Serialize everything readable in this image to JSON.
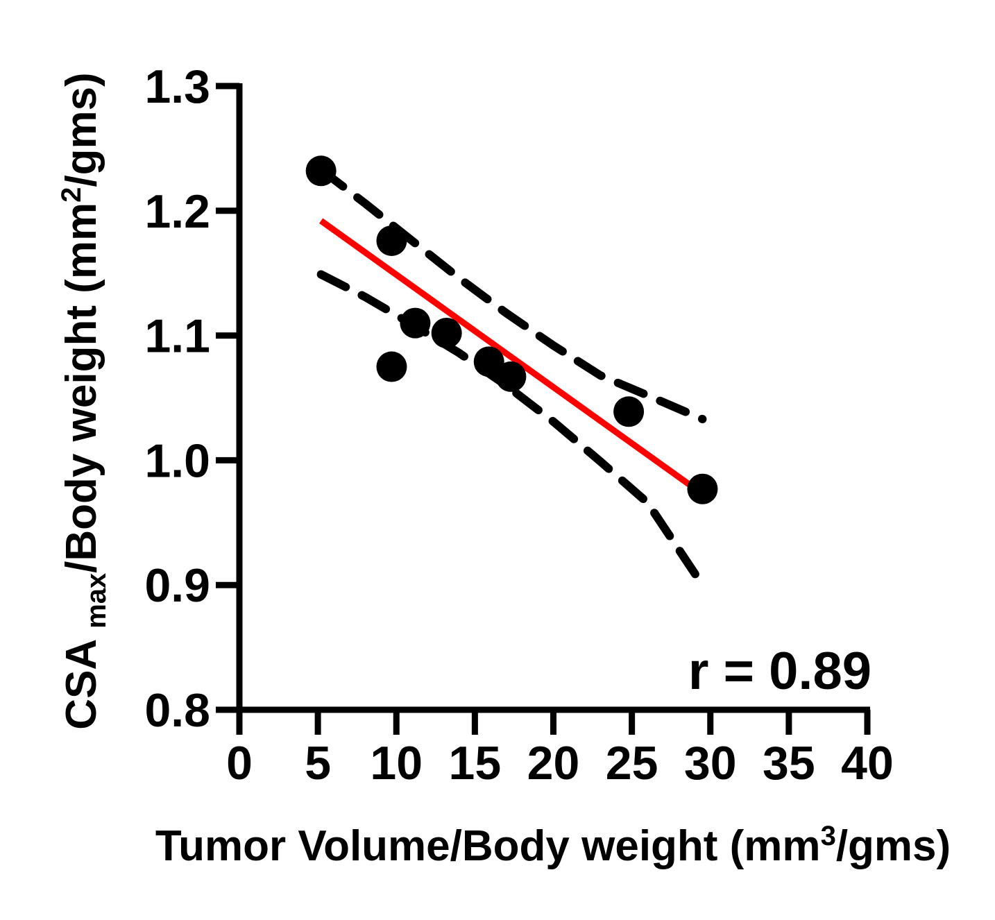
{
  "chart_data": {
    "type": "scatter",
    "title": "",
    "xlabel": {
      "main": "Tumor Volume/Body weight (mm",
      "sup": "3",
      "tail": "/gms)"
    },
    "ylabel": {
      "main": "CSA",
      "sub": "max",
      "mid": "/Body weight (mm",
      "sup": "2",
      "tail": "/gms)"
    },
    "xlim": [
      0,
      40
    ],
    "ylim": [
      0.8,
      1.3
    ],
    "x_ticks": [
      0,
      5,
      10,
      15,
      20,
      25,
      30,
      35,
      40
    ],
    "x_tick_labels": [
      "0",
      "5",
      "10",
      "15",
      "20",
      "25",
      "30",
      "35",
      "40"
    ],
    "y_ticks": [
      0.8,
      0.9,
      1.0,
      1.1,
      1.2,
      1.3
    ],
    "y_tick_labels": [
      "0.8",
      "0.9",
      "1.0",
      "1.1",
      "1.2",
      "1.3"
    ],
    "grid": false,
    "points": [
      {
        "x": 5.2,
        "y": 1.232
      },
      {
        "x": 9.7,
        "y": 1.176
      },
      {
        "x": 9.7,
        "y": 1.075
      },
      {
        "x": 11.2,
        "y": 1.11
      },
      {
        "x": 13.2,
        "y": 1.102
      },
      {
        "x": 15.9,
        "y": 1.079
      },
      {
        "x": 17.3,
        "y": 1.067
      },
      {
        "x": 24.8,
        "y": 1.039
      },
      {
        "x": 29.5,
        "y": 0.977
      }
    ],
    "regression_line": {
      "x": [
        5.2,
        29.5
      ],
      "y": [
        1.192,
        0.973
      ],
      "color": "#ff0000"
    },
    "confidence_bands": [
      {
        "x": [
          5.2,
          8,
          11,
          14,
          17,
          20,
          23,
          26,
          29.5
        ],
        "y": [
          1.233,
          1.206,
          1.176,
          1.146,
          1.118,
          1.092,
          1.068,
          1.052,
          1.033
        ]
      },
      {
        "x": [
          5.2,
          8,
          11,
          14,
          17,
          20,
          23,
          26,
          29.5
        ],
        "y": [
          1.149,
          1.131,
          1.109,
          1.086,
          1.06,
          1.031,
          0.999,
          0.966,
          0.9
        ]
      }
    ],
    "annotation": "r = 0.89",
    "colors": {
      "points": "#000000",
      "axes": "#000000",
      "regression": "#ff0000",
      "bands": "#000000"
    }
  }
}
